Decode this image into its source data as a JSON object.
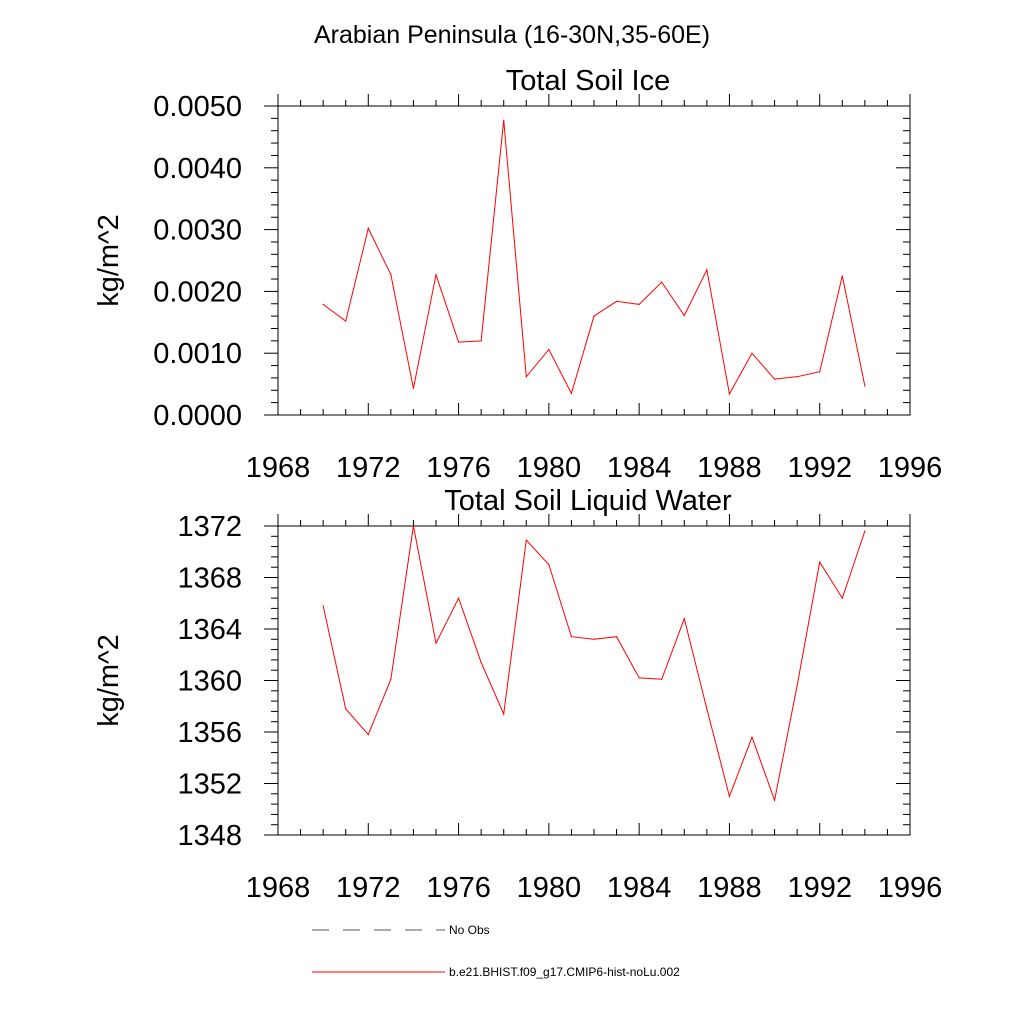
{
  "figure": {
    "title": "Arabian Peninsula (16-30N,35-60E)",
    "legend": [
      {
        "label": "No Obs",
        "color": "#555577",
        "dash": true
      },
      {
        "label": "b.e21.BHIST.f09_g17.CMIP6-hist-noLu.002",
        "color": "#ff0000",
        "dash": false
      }
    ]
  },
  "chart_data": [
    {
      "type": "line",
      "title": "Total Soil Ice",
      "xlabel": "",
      "ylabel": "kg/m^2",
      "xlim": [
        1968,
        1996
      ],
      "ylim": [
        0.0,
        0.005
      ],
      "xticks": [
        "1968",
        "1972",
        "1976",
        "1980",
        "1984",
        "1988",
        "1992",
        "1996"
      ],
      "yticks": [
        "0.0000",
        "0.0010",
        "0.0020",
        "0.0030",
        "0.0040",
        "0.0050"
      ],
      "grid": false,
      "series": [
        {
          "name": "b.e21.BHIST.f09_g17.CMIP6-hist-noLu.002",
          "color": "#ff0000",
          "x": [
            1970,
            1971,
            1972,
            1973,
            1974,
            1975,
            1976,
            1977,
            1978,
            1979,
            1980,
            1981,
            1982,
            1983,
            1984,
            1985,
            1986,
            1987,
            1988,
            1989,
            1990,
            1991,
            1992,
            1993,
            1994
          ],
          "values": [
            0.00179,
            0.00152,
            0.00302,
            0.00227,
            0.00043,
            0.00227,
            0.00118,
            0.0012,
            0.00477,
            0.00062,
            0.00106,
            0.00035,
            0.0016,
            0.00184,
            0.00179,
            0.00215,
            0.00161,
            0.00235,
            0.00034,
            0.001,
            0.00058,
            0.00062,
            0.0007,
            0.00225,
            0.00047
          ]
        }
      ]
    },
    {
      "type": "line",
      "title": "Total Soil Liquid Water",
      "xlabel": "",
      "ylabel": "kg/m^2",
      "xlim": [
        1968,
        1996
      ],
      "ylim": [
        1348,
        1372
      ],
      "xticks": [
        "1968",
        "1972",
        "1976",
        "1980",
        "1984",
        "1988",
        "1992",
        "1996"
      ],
      "yticks": [
        "1348",
        "1352",
        "1356",
        "1360",
        "1364",
        "1368",
        "1372"
      ],
      "grid": false,
      "series": [
        {
          "name": "b.e21.BHIST.f09_g17.CMIP6-hist-noLu.002",
          "color": "#ff0000",
          "x": [
            1970,
            1971,
            1972,
            1973,
            1974,
            1975,
            1976,
            1977,
            1978,
            1979,
            1980,
            1981,
            1982,
            1983,
            1984,
            1985,
            1986,
            1987,
            1988,
            1989,
            1990,
            1991,
            1992,
            1993,
            1994
          ],
          "values": [
            1365.8,
            1357.8,
            1355.8,
            1360.1,
            1372.0,
            1362.9,
            1366.4,
            1361.4,
            1357.4,
            1370.9,
            1369.0,
            1363.4,
            1363.2,
            1363.4,
            1360.2,
            1360.1,
            1364.8,
            1357.8,
            1351.0,
            1355.6,
            1350.7,
            1359.6,
            1369.2,
            1366.4,
            1371.6
          ]
        }
      ]
    }
  ]
}
